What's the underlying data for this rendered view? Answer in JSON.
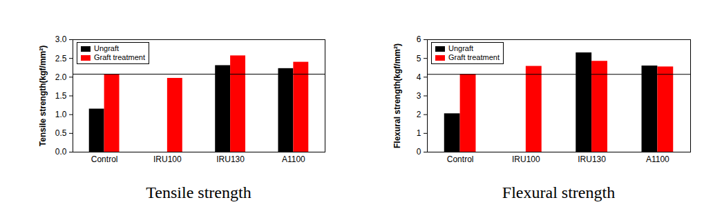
{
  "chart_data": [
    {
      "type": "bar",
      "title": "Tensile strength",
      "y_label": "Tensile strength(kgf/mm²)",
      "categories": [
        "Control",
        "IRU100",
        "IRU130",
        "A1100"
      ],
      "series": [
        {
          "name": "Ungraft",
          "color": "#000000",
          "values": [
            1.15,
            null,
            2.31,
            2.23
          ]
        },
        {
          "name": "Graft treatment",
          "color": "#ff0000",
          "values": [
            2.08,
            1.97,
            2.57,
            2.4
          ]
        }
      ],
      "ylim": [
        0,
        3
      ],
      "yticks": [
        {
          "value": 0,
          "label": "0.0"
        },
        {
          "value": 0.5,
          "label": "0.5"
        },
        {
          "value": 1,
          "label": "1.0"
        },
        {
          "value": 1.5,
          "label": "1.5"
        },
        {
          "value": 2,
          "label": "2.0"
        },
        {
          "value": 2.5,
          "label": "2.5"
        },
        {
          "value": 3,
          "label": "3.0"
        }
      ],
      "reference_line": 2.08,
      "legend": "upper left"
    },
    {
      "type": "bar",
      "title": "Flexural strength",
      "y_label": "Flexural strength(kgf/mm²)",
      "categories": [
        "Control",
        "IRU100",
        "IRU130",
        "A1100"
      ],
      "series": [
        {
          "name": "Ungraft",
          "color": "#000000",
          "values": [
            2.05,
            null,
            5.3,
            4.6
          ]
        },
        {
          "name": "Graft treatment",
          "color": "#ff0000",
          "values": [
            4.15,
            4.58,
            4.85,
            4.55
          ]
        }
      ],
      "ylim": [
        0,
        6
      ],
      "yticks": [
        0,
        1,
        2,
        3,
        4,
        5,
        6
      ],
      "reference_line": 4.15,
      "legend": "upper left"
    }
  ]
}
